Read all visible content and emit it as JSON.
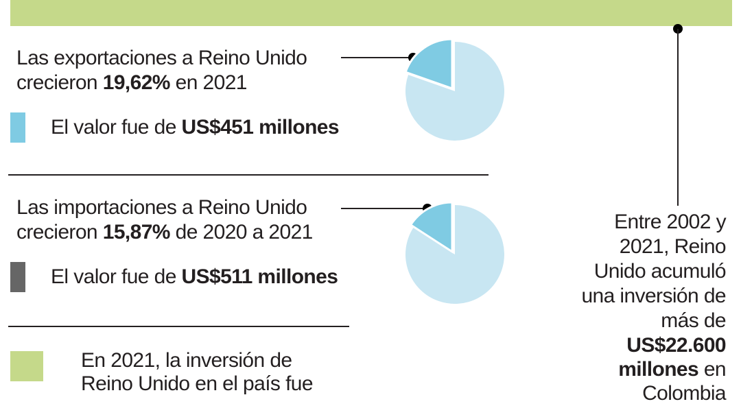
{
  "colors": {
    "bar": "#c5d98a",
    "slice": "#7fcbe3",
    "rest": "#c8e6f2",
    "export_swatch": "#7fcbe3",
    "import_swatch": "#666666",
    "invest_swatch": "#c5d98a"
  },
  "exports": {
    "line1": "Las exportaciones a Reino Unido",
    "pre": "crecieron ",
    "pct": "19,62%",
    "post": " en 2021",
    "value_pre": "El valor fue de ",
    "value": "US$451 millones"
  },
  "imports": {
    "line1": "Las importaciones a Reino Unido",
    "pre": "crecieron ",
    "pct": "15,87%",
    "post": " de 2020 a 2021",
    "value_pre": "El valor fue de ",
    "value": "US$511 millones"
  },
  "investment": {
    "line1": "En 2021, la inversión de",
    "line2": "Reino Unido en el país fue"
  },
  "side": {
    "l1": "Entre 2002 y",
    "l2": "2021, Reino",
    "l3": "Unido acumuló",
    "l4": "una inversión de",
    "l5": "más de",
    "l6": "US$22.600",
    "l7b": "millones",
    "l7": " en",
    "l8": "Colombia"
  },
  "chart_data": [
    {
      "type": "pie",
      "series": [
        {
          "values": [
            19.62,
            80.38
          ]
        }
      ]
    },
    {
      "type": "pie",
      "series": [
        {
          "values": [
            15.87,
            84.13
          ]
        }
      ]
    }
  ]
}
